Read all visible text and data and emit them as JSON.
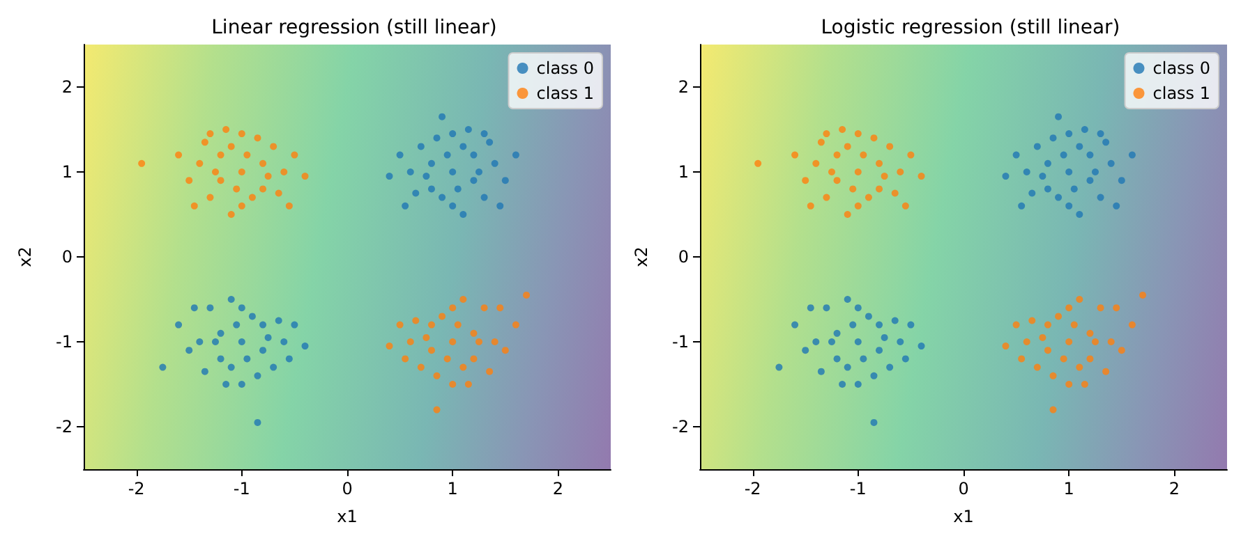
{
  "chart_data": [
    {
      "type": "scatter",
      "title": "Linear regression (still linear)",
      "xlabel": "x1",
      "ylabel": "x2",
      "xlim": [
        -2.5,
        2.5
      ],
      "ylim": [
        -2.5,
        2.5
      ],
      "xticks": [
        -2,
        -1,
        0,
        1,
        2
      ],
      "yticks": [
        -2,
        -1,
        0,
        1,
        2
      ],
      "legend": "top right",
      "grid": false,
      "marker": "circle",
      "series": [
        {
          "name": "class 0",
          "color": "#1f77b4",
          "x": [
            1.0,
            0.8,
            1.2,
            1.1,
            0.9,
            0.6,
            1.4,
            1.3,
            0.7,
            1.0,
            0.9,
            1.5,
            0.5,
            1.2,
            0.8,
            1.1,
            1.35,
            0.65,
            1.05,
            0.95,
            1.25,
            0.75,
            1.6,
            0.4,
            1.0,
            1.15,
            0.85,
            1.45,
            1.3,
            0.55,
            -1.0,
            -1.2,
            -0.8,
            -0.9,
            -1.1,
            -1.4,
            -0.6,
            -1.3,
            -0.7,
            -1.0,
            -0.85,
            -1.75,
            -1.5,
            -0.5,
            -1.2,
            -0.8,
            -1.1,
            -1.35,
            -0.65,
            -1.05,
            -0.95,
            -1.25,
            -0.75,
            -1.6,
            -0.4,
            -1.0,
            -1.15,
            -0.85,
            -1.45,
            -0.55
          ],
          "values": [
            1.0,
            1.1,
            0.9,
            1.3,
            0.7,
            1.0,
            1.1,
            0.7,
            1.3,
            1.45,
            1.65,
            0.9,
            1.2,
            1.2,
            0.8,
            0.5,
            1.35,
            0.75,
            0.8,
            1.2,
            1.0,
            0.95,
            1.2,
            0.95,
            0.6,
            1.5,
            1.4,
            0.6,
            1.45,
            0.6,
            -1.0,
            -0.9,
            -1.1,
            -0.7,
            -1.3,
            -1.0,
            -1.0,
            -0.6,
            -1.3,
            -1.5,
            -1.95,
            -1.3,
            -1.1,
            -0.8,
            -1.2,
            -0.8,
            -0.5,
            -1.35,
            -0.75,
            -0.8,
            -1.2,
            -1.0,
            -0.95,
            -0.8,
            -1.05,
            -0.6,
            -1.5,
            -1.4,
            -0.6,
            -1.2
          ]
        },
        {
          "name": "class 1",
          "color": "#ff7f0e",
          "x": [
            -1.0,
            -0.8,
            -1.2,
            -1.1,
            -0.9,
            -0.6,
            -1.4,
            -1.3,
            -0.7,
            -1.0,
            -1.95,
            -1.5,
            -0.5,
            -1.2,
            -0.8,
            -1.1,
            -1.35,
            -0.65,
            -1.05,
            -0.95,
            -1.25,
            -0.75,
            -1.6,
            -0.4,
            -1.0,
            -1.15,
            -0.85,
            -1.45,
            -1.3,
            -0.55,
            1.0,
            1.2,
            0.8,
            0.9,
            1.1,
            1.4,
            0.6,
            1.3,
            0.7,
            1.0,
            0.85,
            1.7,
            1.5,
            0.5,
            1.2,
            0.8,
            1.1,
            1.35,
            0.65,
            1.05,
            0.95,
            1.25,
            0.75,
            1.6,
            0.4,
            1.0,
            1.15,
            0.85,
            1.45,
            0.55
          ],
          "values": [
            1.0,
            1.1,
            0.9,
            1.3,
            0.7,
            1.0,
            1.1,
            0.7,
            1.3,
            1.45,
            1.1,
            0.9,
            1.2,
            1.2,
            0.8,
            0.5,
            1.35,
            0.75,
            0.8,
            1.2,
            1.0,
            0.95,
            1.2,
            0.95,
            0.6,
            1.5,
            1.4,
            0.6,
            1.45,
            0.6,
            -1.0,
            -0.9,
            -1.1,
            -0.7,
            -1.3,
            -1.0,
            -1.0,
            -0.6,
            -1.3,
            -1.5,
            -1.8,
            -0.45,
            -1.1,
            -0.8,
            -1.2,
            -0.8,
            -0.5,
            -1.35,
            -0.75,
            -0.8,
            -1.2,
            -1.0,
            -0.95,
            -0.8,
            -1.05,
            -0.6,
            -1.5,
            -1.4,
            -0.6,
            -1.2
          ]
        }
      ]
    },
    {
      "type": "scatter",
      "title": "Logistic regression (still linear)",
      "xlabel": "x1",
      "ylabel": "x2",
      "xlim": [
        -2.5,
        2.5
      ],
      "ylim": [
        -2.5,
        2.5
      ],
      "xticks": [
        -2,
        -1,
        0,
        1,
        2
      ],
      "yticks": [
        -2,
        -1,
        0,
        1,
        2
      ],
      "legend": "top right",
      "grid": false,
      "marker": "circle",
      "series": [
        {
          "name": "class 0",
          "color": "#1f77b4",
          "x": [
            1.0,
            0.8,
            1.2,
            1.1,
            0.9,
            0.6,
            1.4,
            1.3,
            0.7,
            1.0,
            0.9,
            1.5,
            0.5,
            1.2,
            0.8,
            1.1,
            1.35,
            0.65,
            1.05,
            0.95,
            1.25,
            0.75,
            1.6,
            0.4,
            1.0,
            1.15,
            0.85,
            1.45,
            1.3,
            0.55,
            -1.0,
            -1.2,
            -0.8,
            -0.9,
            -1.1,
            -1.4,
            -0.6,
            -1.3,
            -0.7,
            -1.0,
            -0.85,
            -1.75,
            -1.5,
            -0.5,
            -1.2,
            -0.8,
            -1.1,
            -1.35,
            -0.65,
            -1.05,
            -0.95,
            -1.25,
            -0.75,
            -1.6,
            -0.4,
            -1.0,
            -1.15,
            -0.85,
            -1.45,
            -0.55
          ],
          "values": [
            1.0,
            1.1,
            0.9,
            1.3,
            0.7,
            1.0,
            1.1,
            0.7,
            1.3,
            1.45,
            1.65,
            0.9,
            1.2,
            1.2,
            0.8,
            0.5,
            1.35,
            0.75,
            0.8,
            1.2,
            1.0,
            0.95,
            1.2,
            0.95,
            0.6,
            1.5,
            1.4,
            0.6,
            1.45,
            0.6,
            -1.0,
            -0.9,
            -1.1,
            -0.7,
            -1.3,
            -1.0,
            -1.0,
            -0.6,
            -1.3,
            -1.5,
            -1.95,
            -1.3,
            -1.1,
            -0.8,
            -1.2,
            -0.8,
            -0.5,
            -1.35,
            -0.75,
            -0.8,
            -1.2,
            -1.0,
            -0.95,
            -0.8,
            -1.05,
            -0.6,
            -1.5,
            -1.4,
            -0.6,
            -1.2
          ]
        },
        {
          "name": "class 1",
          "color": "#ff7f0e",
          "x": [
            -1.0,
            -0.8,
            -1.2,
            -1.1,
            -0.9,
            -0.6,
            -1.4,
            -1.3,
            -0.7,
            -1.0,
            -1.95,
            -1.5,
            -0.5,
            -1.2,
            -0.8,
            -1.1,
            -1.35,
            -0.65,
            -1.05,
            -0.95,
            -1.25,
            -0.75,
            -1.6,
            -0.4,
            -1.0,
            -1.15,
            -0.85,
            -1.45,
            -1.3,
            -0.55,
            1.0,
            1.2,
            0.8,
            0.9,
            1.1,
            1.4,
            0.6,
            1.3,
            0.7,
            1.0,
            0.85,
            1.7,
            1.5,
            0.5,
            1.2,
            0.8,
            1.1,
            1.35,
            0.65,
            1.05,
            0.95,
            1.25,
            0.75,
            1.6,
            0.4,
            1.0,
            1.15,
            0.85,
            1.45,
            0.55
          ],
          "values": [
            1.0,
            1.1,
            0.9,
            1.3,
            0.7,
            1.0,
            1.1,
            0.7,
            1.3,
            1.45,
            1.1,
            0.9,
            1.2,
            1.2,
            0.8,
            0.5,
            1.35,
            0.75,
            0.8,
            1.2,
            1.0,
            0.95,
            1.2,
            0.95,
            0.6,
            1.5,
            1.4,
            0.6,
            1.45,
            0.6,
            -1.0,
            -0.9,
            -1.1,
            -0.7,
            -1.3,
            -1.0,
            -1.0,
            -0.6,
            -1.3,
            -1.5,
            -1.8,
            -0.45,
            -1.1,
            -0.8,
            -1.2,
            -0.8,
            -0.5,
            -1.35,
            -0.75,
            -0.8,
            -1.2,
            -1.0,
            -0.95,
            -0.8,
            -1.05,
            -0.6,
            -1.5,
            -1.4,
            -0.6,
            -1.2
          ]
        }
      ]
    }
  ]
}
